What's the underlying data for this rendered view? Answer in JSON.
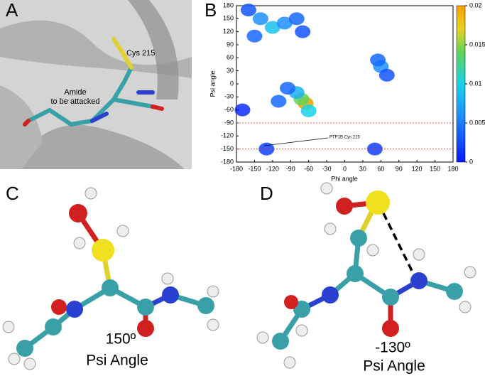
{
  "panels": {
    "a": {
      "letter": "A",
      "residue_label": "Cys 215",
      "amide_label": [
        "Amide",
        "to be attacked"
      ]
    },
    "c": {
      "letter": "C",
      "angle_label": "150º",
      "caption": "Psi Angle"
    },
    "d": {
      "letter": "D",
      "angle_label": "-130º",
      "caption": "Psi Angle"
    }
  },
  "chart_data": {
    "type": "heatmap",
    "letter": "B",
    "x_label": "Phi angle",
    "y_label": "Psi angle",
    "xlim": [
      -180,
      180
    ],
    "ylim": [
      -180,
      180
    ],
    "xticks": [
      -180,
      -150,
      -120,
      -90,
      -60,
      -30,
      0,
      30,
      60,
      90,
      120,
      150,
      180
    ],
    "yticks": [
      -180,
      -150,
      -120,
      -90,
      -60,
      -30,
      0,
      30,
      60,
      90,
      120,
      150,
      180
    ],
    "colorbar_lim": [
      0,
      0.02
    ],
    "colorbar_ticks": [
      0,
      0.005,
      0.01,
      0.015,
      0.02
    ],
    "reference_lines": [
      -90,
      -150
    ],
    "reference_color": "#e03030",
    "annotation": "PTP1B Cys 215",
    "points": [
      {
        "x": -65,
        "y": -45,
        "value": 0.02
      },
      {
        "x": -72,
        "y": -35,
        "value": 0.014
      },
      {
        "x": -80,
        "y": -20,
        "value": 0.008
      },
      {
        "x": -95,
        "y": -10,
        "value": 0.004
      },
      {
        "x": -60,
        "y": -62,
        "value": 0.01
      },
      {
        "x": -110,
        "y": -40,
        "value": 0.004
      },
      {
        "x": -120,
        "y": 130,
        "value": 0.009
      },
      {
        "x": -140,
        "y": 150,
        "value": 0.006
      },
      {
        "x": -100,
        "y": 140,
        "value": 0.006
      },
      {
        "x": -150,
        "y": 110,
        "value": 0.004
      },
      {
        "x": -80,
        "y": 150,
        "value": 0.004
      },
      {
        "x": -160,
        "y": 170,
        "value": 0.003
      },
      {
        "x": -70,
        "y": 120,
        "value": 0.003
      },
      {
        "x": 60,
        "y": 40,
        "value": 0.006
      },
      {
        "x": 55,
        "y": 55,
        "value": 0.004
      },
      {
        "x": 70,
        "y": 20,
        "value": 0.003
      },
      {
        "x": -130,
        "y": -150,
        "value": 0.002
      },
      {
        "x": 50,
        "y": -150,
        "value": 0.002
      },
      {
        "x": -170,
        "y": -60,
        "value": 0.001
      }
    ]
  }
}
